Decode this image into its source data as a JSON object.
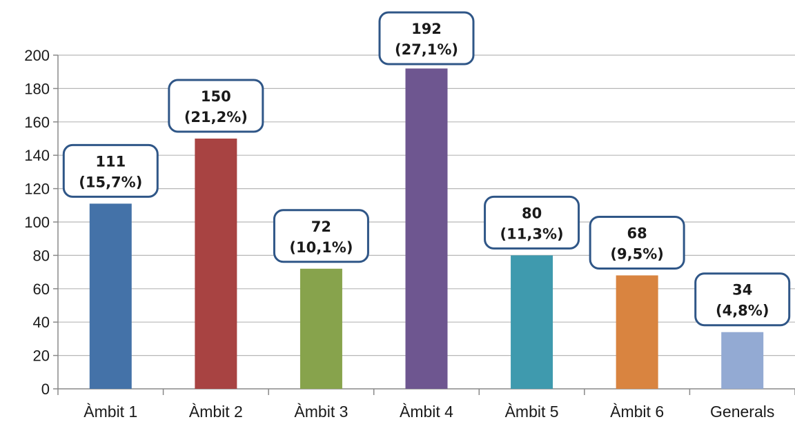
{
  "chart_data": {
    "type": "bar",
    "title": "",
    "xlabel": "",
    "ylabel": "",
    "categories": [
      "Àmbit 1",
      "Àmbit 2",
      "Àmbit 3",
      "Àmbit 4",
      "Àmbit 5",
      "Àmbit 6",
      "Generals"
    ],
    "values": [
      111,
      150,
      72,
      192,
      80,
      68,
      34
    ],
    "data_labels": [
      [
        "111",
        "(15,7%)"
      ],
      [
        "150",
        "(21,2%)"
      ],
      [
        "72",
        "(10,1%)"
      ],
      [
        "192",
        "(27,1%)"
      ],
      [
        "80",
        "(11,3%)"
      ],
      [
        "68",
        "(9,5%)"
      ],
      [
        "34",
        "(4,8%)"
      ]
    ],
    "colors": [
      "#4472a8",
      "#a84342",
      "#87a34c",
      "#6e5690",
      "#3f9aae",
      "#d98440",
      "#93aad3"
    ],
    "ylim": [
      0,
      200
    ],
    "yticks": [
      0,
      20,
      40,
      60,
      80,
      100,
      120,
      140,
      160,
      180,
      200
    ],
    "grid": true,
    "legend": "none"
  }
}
